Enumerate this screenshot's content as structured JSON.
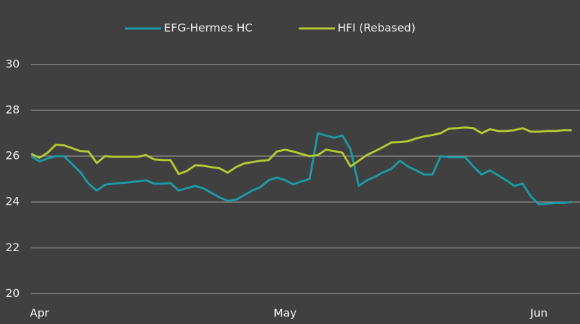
{
  "chart_data": {
    "type": "line",
    "categories": [
      null,
      "Apr",
      null,
      null,
      null,
      null,
      null,
      null,
      null,
      null,
      null,
      null,
      null,
      null,
      null,
      null,
      null,
      null,
      null,
      null,
      null,
      null,
      null,
      null,
      null,
      null,
      null,
      null,
      null,
      null,
      null,
      "May",
      null,
      null,
      null,
      null,
      null,
      null,
      null,
      null,
      null,
      null,
      null,
      null,
      null,
      null,
      null,
      null,
      null,
      null,
      null,
      null,
      null,
      null,
      null,
      null,
      null,
      null,
      null,
      null,
      null,
      null,
      "Jun",
      null,
      null,
      null,
      null
    ],
    "series": [
      {
        "name": "EFG-Hermes HC",
        "color": "#1b9aa6",
        "values": [
          26.0,
          25.77,
          25.9,
          26.0,
          26.0,
          25.65,
          25.3,
          24.8,
          24.5,
          24.75,
          24.8,
          24.83,
          24.86,
          24.9,
          24.95,
          24.8,
          24.8,
          24.83,
          24.5,
          24.6,
          24.7,
          24.6,
          24.4,
          24.2,
          24.05,
          24.1,
          24.3,
          24.5,
          24.65,
          24.95,
          25.07,
          24.95,
          24.77,
          24.9,
          25.0,
          27.0,
          26.9,
          26.8,
          26.9,
          26.3,
          24.7,
          24.95,
          25.1,
          25.3,
          25.45,
          25.8,
          25.55,
          25.38,
          25.2,
          25.2,
          26.0,
          25.95,
          25.95,
          25.95,
          25.55,
          25.2,
          25.38,
          25.17,
          24.95,
          24.7,
          24.8,
          24.25,
          23.9,
          23.93,
          23.96,
          23.96,
          24.0
        ]
      },
      {
        "name": "HFI (Rebased)",
        "color": "#b5c934",
        "values": [
          26.1,
          25.93,
          26.15,
          26.5,
          26.47,
          26.35,
          26.22,
          26.2,
          25.7,
          26.0,
          25.97,
          25.97,
          25.97,
          25.97,
          26.05,
          25.86,
          25.83,
          25.83,
          25.22,
          25.35,
          25.6,
          25.58,
          25.52,
          25.47,
          25.28,
          25.52,
          25.68,
          25.74,
          25.8,
          25.83,
          26.2,
          26.28,
          26.2,
          26.1,
          26.0,
          26.05,
          26.28,
          26.22,
          26.15,
          25.55,
          25.8,
          26.05,
          26.22,
          26.4,
          26.6,
          26.62,
          26.65,
          26.77,
          26.86,
          26.92,
          27.0,
          27.2,
          27.22,
          27.25,
          27.22,
          27.0,
          27.17,
          27.1,
          27.1,
          27.13,
          27.22,
          27.07,
          27.07,
          27.1,
          27.1,
          27.13,
          27.13
        ]
      }
    ],
    "ylim": [
      19.8,
      30.6
    ],
    "yticks": [
      20,
      22,
      24,
      26,
      28,
      30
    ],
    "grid": true,
    "legend": "top"
  }
}
